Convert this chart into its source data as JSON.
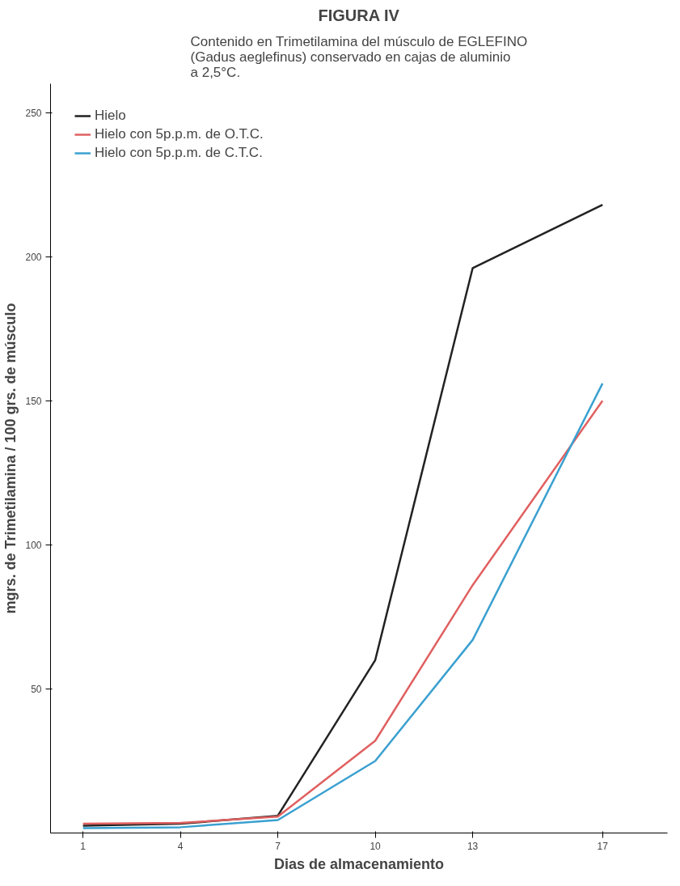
{
  "chart_data": {
    "type": "line",
    "title": "FIGURA IV",
    "subtitle": "Contenido en Trimetilamina del músculo de EGLEFINO (Gadus aeglefinus) conservado en cajas de aluminio a 2,5°C.",
    "xlabel": "Dias de almacenamiento",
    "ylabel": "mgrs. de Trimetilamina / 100 grs. de músculo",
    "x": [
      1,
      4,
      7,
      10,
      13,
      17
    ],
    "series": [
      {
        "name": "Hielo",
        "color": "#222222",
        "values": [
          2.5,
          3.2,
          6,
          60,
          196,
          218
        ]
      },
      {
        "name": "Hielo con 5p.p.m. de O.T.C.",
        "color": "#e06060",
        "values": [
          3.2,
          3.5,
          5.7,
          32,
          86,
          150
        ]
      },
      {
        "name": "Hielo con 5p.p.m. de C.T.C.",
        "color": "#3aa0d0",
        "values": [
          1.7,
          2,
          4.5,
          25,
          67,
          156
        ]
      }
    ],
    "xlim": [
      0,
      19
    ],
    "ylim": [
      0,
      260
    ],
    "xticks": [
      1,
      4,
      7,
      10,
      13,
      17
    ],
    "yticks": [
      50,
      100,
      150,
      200,
      250
    ],
    "grid": false,
    "legend": "top left",
    "marker": "none",
    "line_style": "solid"
  }
}
